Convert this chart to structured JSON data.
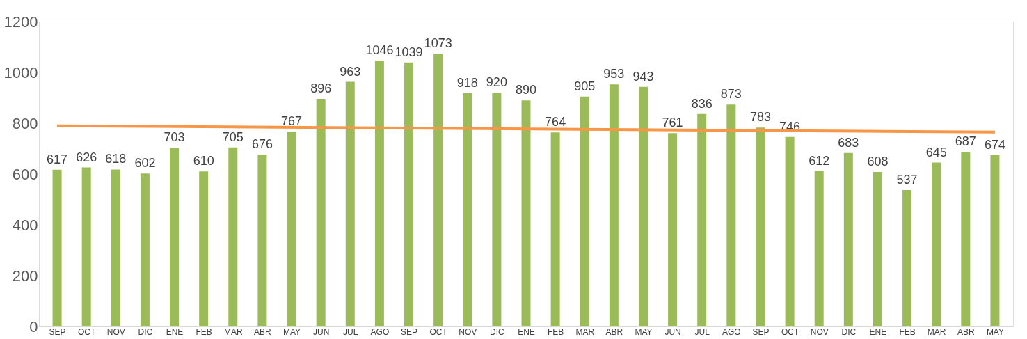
{
  "chart_data": {
    "type": "bar",
    "categories": [
      "SEP",
      "OCT",
      "NOV",
      "DIC",
      "ENE",
      "FEB",
      "MAR",
      "ABR",
      "MAY",
      "JUN",
      "JUL",
      "AGO",
      "SEP",
      "OCT",
      "NOV",
      "DIC",
      "ENE",
      "FEB",
      "MAR",
      "ABR",
      "MAY",
      "JUN",
      "JUL",
      "AGO",
      "SEP",
      "OCT",
      "NOV",
      "DIC",
      "ENE",
      "FEB",
      "MAR",
      "ABR",
      "MAY"
    ],
    "series": [
      {
        "color": "#9bbb59",
        "values": [
          617,
          626,
          618,
          602,
          703,
          610,
          705,
          676,
          767,
          896,
          963,
          1046,
          1039,
          1073,
          918,
          920,
          890,
          764,
          905,
          953,
          943,
          761,
          836,
          873,
          783,
          746,
          612,
          683,
          608,
          537,
          645,
          687,
          674
        ],
        "value_labels": [
          "617",
          "626",
          "618",
          "602",
          "703",
          "610",
          "705",
          "676",
          "767",
          "896",
          "963",
          "1046",
          "1039",
          "1073",
          "918",
          "920",
          "890",
          "764",
          "905",
          "953",
          "943",
          "761",
          "836",
          "873",
          "783",
          "746",
          "612",
          "683",
          "608",
          "537",
          "645",
          "687",
          "674"
        ]
      },
      {
        "type": "line",
        "color": "#f79646",
        "values": [
          790,
          null,
          null,
          null,
          null,
          null,
          null,
          null,
          null,
          null,
          null,
          null,
          null,
          null,
          null,
          null,
          null,
          null,
          null,
          null,
          null,
          null,
          null,
          null,
          null,
          null,
          null,
          null,
          null,
          null,
          null,
          null,
          765
        ]
      }
    ],
    "ylim": [
      0,
      1200
    ],
    "yticks": [
      0,
      200,
      400,
      600,
      800,
      1000,
      1200
    ],
    "grid": false
  }
}
